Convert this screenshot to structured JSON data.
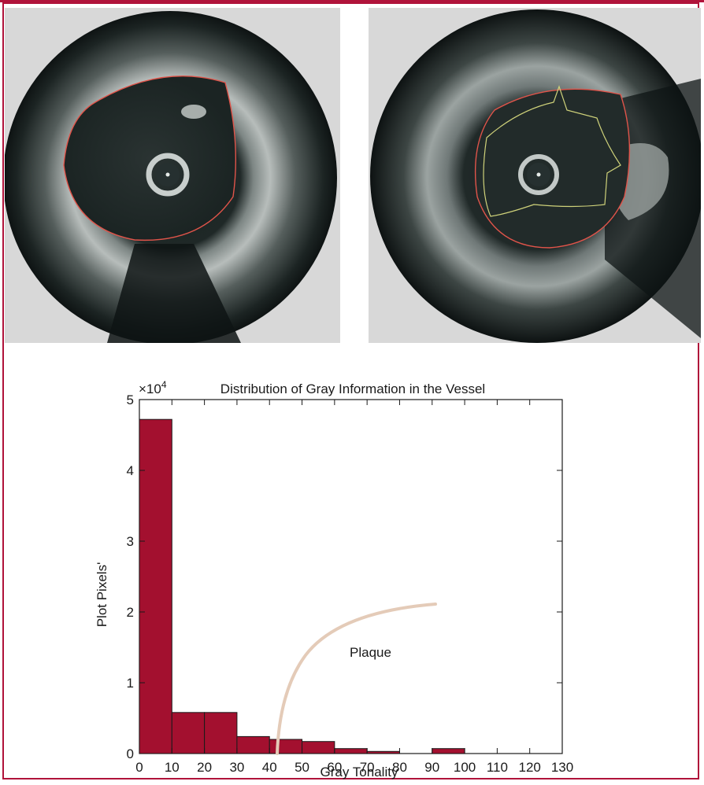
{
  "panels": [
    {
      "name": "ivus-image-lumen-contour"
    },
    {
      "name": "ivus-image-plaque-contour"
    }
  ],
  "chart_data": {
    "type": "bar",
    "title": "Distribution of Gray Information in the Vessel",
    "xlabel": "Gray Tonality",
    "ylabel": "Plot Pixels'",
    "y_multiplier": "×10",
    "y_multiplier_exp": "4",
    "xlim": [
      0,
      130
    ],
    "ylim": [
      0,
      5
    ],
    "x_ticks": [
      "0",
      "10",
      "20",
      "30",
      "40",
      "50",
      "60",
      "70",
      "80",
      "90",
      "100",
      "110",
      "120",
      "130"
    ],
    "y_ticks": [
      "0",
      "1",
      "2",
      "3",
      "4",
      "5"
    ],
    "bins": [
      {
        "start": 0,
        "end": 10,
        "value": 4.72
      },
      {
        "start": 10,
        "end": 20,
        "value": 0.58
      },
      {
        "start": 20,
        "end": 30,
        "value": 0.58
      },
      {
        "start": 30,
        "end": 40,
        "value": 0.24
      },
      {
        "start": 40,
        "end": 50,
        "value": 0.2
      },
      {
        "start": 50,
        "end": 60,
        "value": 0.17
      },
      {
        "start": 60,
        "end": 70,
        "value": 0.07
      },
      {
        "start": 70,
        "end": 80,
        "value": 0.03
      },
      {
        "start": 90,
        "end": 100,
        "value": 0.07
      }
    ],
    "annotation": {
      "label": "Plaque"
    },
    "colors": {
      "bar": "#a3102f",
      "annotation_curve": "#e4cbb8"
    }
  }
}
